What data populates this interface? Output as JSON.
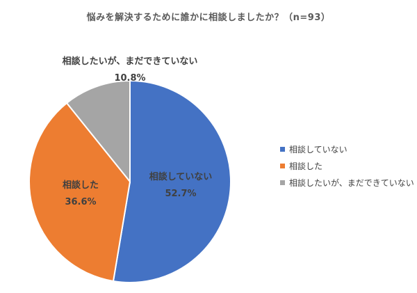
{
  "chart_data": {
    "type": "pie",
    "title": "悩みを解決するために誰かに相談しましたか？（n=93）",
    "series": [
      {
        "name": "相談していない",
        "value": 52.7,
        "value_label": "52.7%",
        "color": "#4472C4"
      },
      {
        "name": "相談した",
        "value": 36.6,
        "value_label": "36.6%",
        "color": "#ED7D31"
      },
      {
        "name": "相談したいが、まだできていない",
        "value": 10.8,
        "value_label": "10.8%",
        "color": "#A5A5A5"
      }
    ],
    "start_angle_deg": 0,
    "direction": "clockwise",
    "legend_position": "right"
  }
}
